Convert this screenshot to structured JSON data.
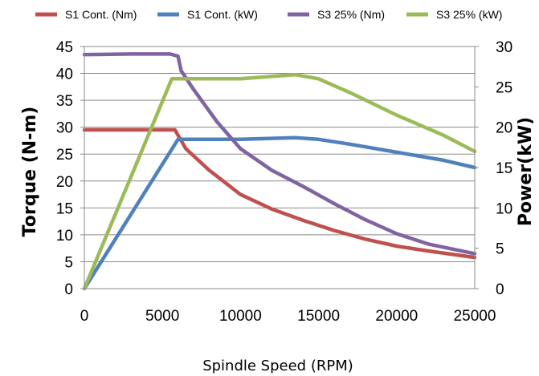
{
  "chart_data": {
    "type": "line",
    "xlabel": "Spindle Speed (RPM)",
    "ylabel": "Torque (N-m)",
    "y2label": "Power(kW)",
    "xlim": [
      0,
      25000
    ],
    "ylim": [
      0,
      45
    ],
    "y2lim": [
      0,
      30
    ],
    "x_ticks": [
      0,
      5000,
      10000,
      15000,
      20000,
      25000
    ],
    "y_ticks": [
      0,
      5,
      10,
      15,
      20,
      25,
      30,
      35,
      40,
      45
    ],
    "y2_ticks": [
      0,
      5,
      10,
      15,
      20,
      25,
      30
    ],
    "grid": "horizontal",
    "legend_position": "top",
    "series": [
      {
        "name": "S1 Cont. (Nm)",
        "axis": "left",
        "color": "#c0504d",
        "x": [
          0,
          5800,
          6500,
          8000,
          10000,
          12000,
          14000,
          16000,
          18000,
          20000,
          22000,
          25000
        ],
        "y": [
          29.5,
          29.5,
          26,
          22,
          17.5,
          14.8,
          12.7,
          10.8,
          9.2,
          7.9,
          7.0,
          5.8
        ]
      },
      {
        "name": "S1 Cont. (kW)",
        "axis": "right",
        "color": "#4f81bd",
        "x": [
          0,
          6000,
          10000,
          13500,
          15000,
          17000,
          20000,
          23000,
          25000
        ],
        "y": [
          0,
          18.5,
          18.5,
          18.7,
          18.5,
          17.9,
          16.9,
          15.9,
          15.0
        ]
      },
      {
        "name": "S3 25% (Nm)",
        "axis": "left",
        "color": "#8064a2",
        "x": [
          0,
          3000,
          5500,
          6000,
          6200,
          7000,
          8500,
          10000,
          12000,
          14000,
          16000,
          18000,
          20000,
          22000,
          25000
        ],
        "y": [
          43.5,
          43.6,
          43.6,
          43.2,
          40.5,
          37,
          31,
          26,
          22,
          19,
          15.8,
          12.8,
          10.2,
          8.3,
          6.5
        ]
      },
      {
        "name": "S3 25% (kW)",
        "axis": "right",
        "color": "#9bbb59",
        "x": [
          0,
          5600,
          6000,
          8000,
          10000,
          12000,
          13500,
          15000,
          17000,
          20000,
          23000,
          25000
        ],
        "y": [
          0,
          26,
          26,
          26,
          26,
          26.3,
          26.5,
          26,
          24.3,
          21.5,
          19,
          17
        ]
      }
    ]
  }
}
